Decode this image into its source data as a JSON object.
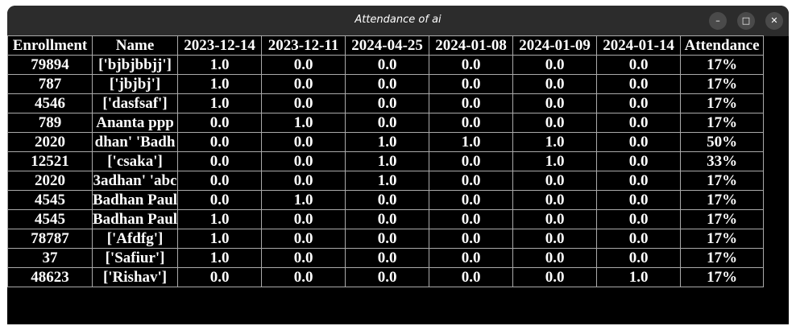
{
  "window": {
    "title": "Attendance of ai",
    "minimize_icon": "minimize-icon",
    "maximize_icon": "maximize-icon",
    "close_icon": "close-icon"
  },
  "table": {
    "columns": [
      "Enrollment",
      "Name",
      "2023-12-14",
      "2023-12-11",
      "2024-04-25",
      "2024-01-08",
      "2024-01-09",
      "2024-01-14",
      "Attendance"
    ],
    "rows": [
      [
        "79894",
        "['bjbjbbjj']",
        "1.0",
        "0.0",
        "0.0",
        "0.0",
        "0.0",
        "0.0",
        "17%"
      ],
      [
        "787",
        "['jbjbj']",
        "1.0",
        "0.0",
        "0.0",
        "0.0",
        "0.0",
        "0.0",
        "17%"
      ],
      [
        "4546",
        "['dasfsaf']",
        "1.0",
        "0.0",
        "0.0",
        "0.0",
        "0.0",
        "0.0",
        "17%"
      ],
      [
        "789",
        "Ananta ppp",
        "0.0",
        "1.0",
        "0.0",
        "0.0",
        "0.0",
        "0.0",
        "17%"
      ],
      [
        "2020",
        "dhan' 'Badh",
        "0.0",
        "0.0",
        "1.0",
        "1.0",
        "1.0",
        "0.0",
        "50%"
      ],
      [
        "12521",
        "['csaka']",
        "0.0",
        "0.0",
        "1.0",
        "0.0",
        "1.0",
        "0.0",
        "33%"
      ],
      [
        "2020",
        "3adhan' 'abc",
        "0.0",
        "0.0",
        "1.0",
        "0.0",
        "0.0",
        "0.0",
        "17%"
      ],
      [
        "4545",
        "Badhan Paul",
        "0.0",
        "1.0",
        "0.0",
        "0.0",
        "0.0",
        "0.0",
        "17%"
      ],
      [
        "4545",
        "Badhan Paul",
        "1.0",
        "0.0",
        "0.0",
        "0.0",
        "0.0",
        "0.0",
        "17%"
      ],
      [
        "78787",
        "['Afdfg']",
        "1.0",
        "0.0",
        "0.0",
        "0.0",
        "0.0",
        "0.0",
        "17%"
      ],
      [
        "37",
        "['Safiur']",
        "1.0",
        "0.0",
        "0.0",
        "0.0",
        "0.0",
        "0.0",
        "17%"
      ],
      [
        "48623",
        "['Rishav']",
        "0.0",
        "0.0",
        "0.0",
        "0.0",
        "0.0",
        "1.0",
        "17%"
      ]
    ]
  }
}
